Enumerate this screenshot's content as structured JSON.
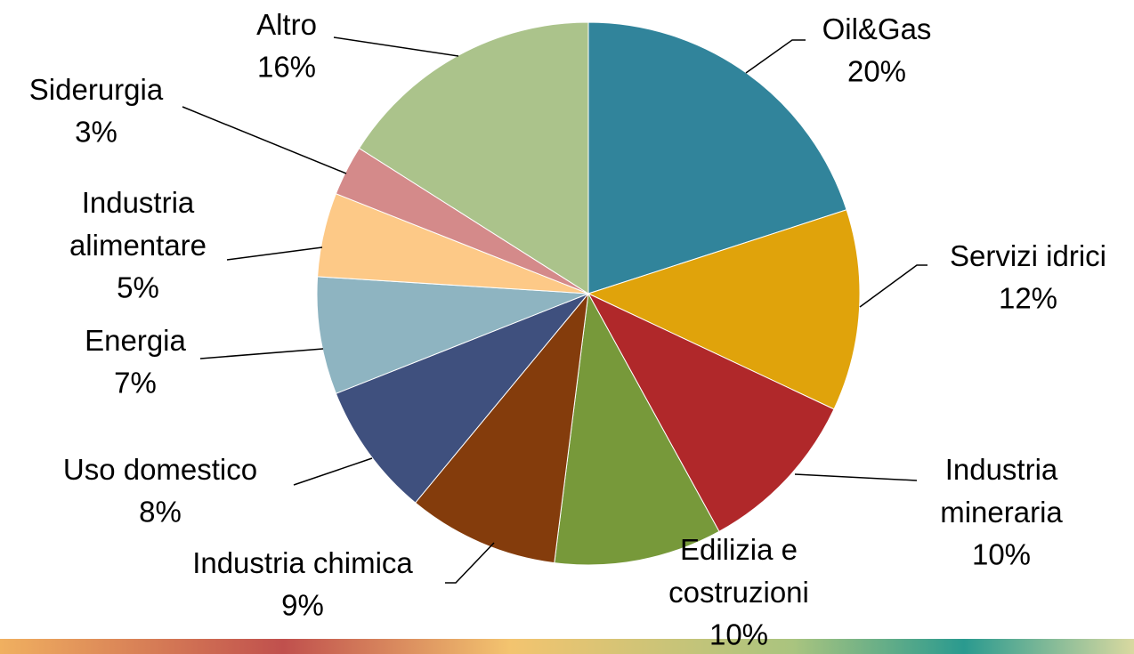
{
  "chart_data": {
    "type": "pie",
    "categories": [
      "Oil&Gas",
      "Servizi idrici",
      "Industria mineraria",
      "Edilizia e costruzioni",
      "Industria chimica",
      "Uso domestico",
      "Energia",
      "Industria alimentare",
      "Siderurgia",
      "Altro"
    ],
    "values": [
      20,
      12,
      10,
      10,
      9,
      8,
      7,
      5,
      3,
      16
    ],
    "value_labels": [
      "20%",
      "12%",
      "10%",
      "10%",
      "9%",
      "8%",
      "7%",
      "5%",
      "3%",
      "16%"
    ],
    "colors": [
      "#31849b",
      "#e0a30b",
      "#b0282a",
      "#77993a",
      "#843c0c",
      "#3f507e",
      "#8eb4c1",
      "#fdc987",
      "#d48a8a",
      "#abc38b"
    ]
  }
}
